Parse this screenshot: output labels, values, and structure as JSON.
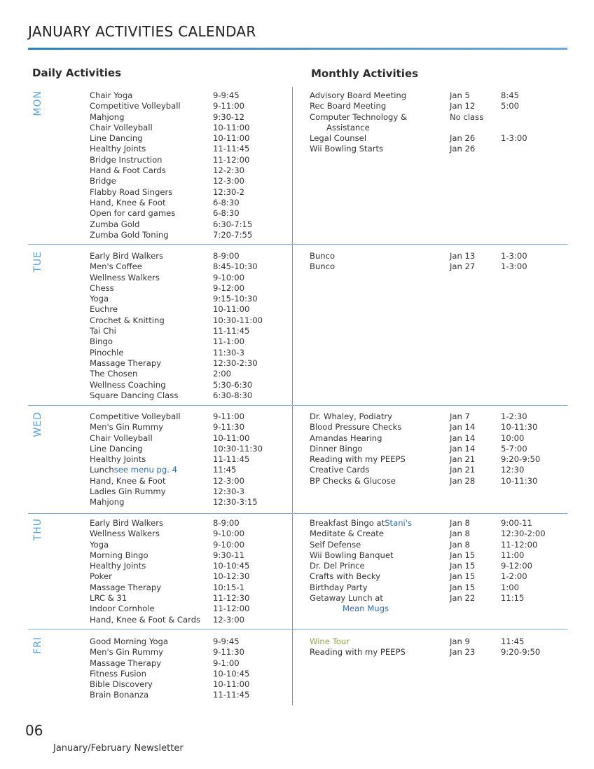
{
  "title": "JANUARY ACTIVITIES CALENDAR",
  "daily_heading": "Daily Activities",
  "monthly_heading": "Monthly Activities",
  "page_number": "06",
  "footer": "January/February Newsletter",
  "colors": {
    "accent": "#2f7fbf",
    "day_label": "#5aa3dc",
    "link": "#2d6fb0",
    "wine_tour": "#8aa84a"
  },
  "days": [
    {
      "label": "MON",
      "daily": [
        [
          "Chair Yoga",
          "9-9:45"
        ],
        [
          "Competitive Volleyball",
          "9-11:00"
        ],
        [
          "Mahjong",
          "9:30-12"
        ],
        [
          "Chair Volleyball",
          "10-11:00"
        ],
        [
          "Line Dancing",
          "10-11:00"
        ],
        [
          "Healthy Joints",
          "11-11:45"
        ],
        [
          "Bridge Instruction",
          "11-12:00"
        ],
        [
          "Hand & Foot Cards",
          "12-2:30"
        ],
        [
          "Bridge",
          "12-3:00"
        ],
        [
          "Flabby Road Singers",
          "12:30-2"
        ],
        [
          "Hand, Knee & Foot",
          "6-8:30"
        ],
        [
          "Open for card games",
          "6-8:30"
        ],
        [
          "Zumba Gold",
          "6:30-7:15"
        ],
        [
          "Zumba Gold Toning",
          "7:20-7:55"
        ]
      ],
      "monthly": [
        [
          "Advisory Board Meeting",
          "",
          "Jan 5",
          "8:45"
        ],
        [
          "Rec Board Meeting",
          "",
          "Jan 12",
          "5:00"
        ],
        [
          "Computer Technology &",
          "",
          "No class",
          ""
        ],
        [
          "    Assistance",
          "",
          "",
          ""
        ],
        [
          "Legal Counsel",
          "",
          "Jan 26",
          "1-3:00"
        ],
        [
          "Wii Bowling Starts",
          "",
          "Jan 26",
          ""
        ]
      ]
    },
    {
      "label": "TUE",
      "daily": [
        [
          "Early Bird Walkers",
          "8-9:00"
        ],
        [
          "Men's Coffee",
          "8:45-10:30"
        ],
        [
          "Wellness Walkers",
          "9-10:00"
        ],
        [
          "Chess",
          "9-12:00"
        ],
        [
          "Yoga",
          "9:15-10:30"
        ],
        [
          "Euchre",
          "10-11:00"
        ],
        [
          "Crochet & Knitting",
          "10:30-11:00"
        ],
        [
          "Tai Chi",
          "11-11:45"
        ],
        [
          "Bingo",
          "11-1:00"
        ],
        [
          "Pinochle",
          "11:30-3"
        ],
        [
          "Massage Therapy",
          "12:30-2:30"
        ],
        [
          "The Chosen",
          "2:00"
        ],
        [
          "Wellness Coaching",
          "5:30-6:30"
        ],
        [
          "Square Dancing Class",
          "6:30-8:30"
        ]
      ],
      "monthly": [
        [
          "Bunco",
          "",
          "Jan 13",
          "1-3:00"
        ],
        [
          "Bunco",
          "",
          "Jan 27",
          "1-3:00"
        ]
      ]
    },
    {
      "label": "WED",
      "daily": [
        [
          "Competitive Volleyball",
          "9-11:00"
        ],
        [
          "Men's Gin Rummy",
          "9-11:30"
        ],
        [
          "Chair Volleyball",
          "10-11:00"
        ],
        [
          "Line Dancing",
          "10:30-11:30"
        ],
        [
          "Healthy Joints",
          "11-11:45"
        ],
        [
          "Lunch ",
          "11:45",
          "see menu pg. 4"
        ],
        [
          "Hand, Knee & Foot",
          "12-3:00"
        ],
        [
          "Ladies Gin Rummy",
          "12:30-3"
        ],
        [
          "Mahjong",
          "12:30-3:15"
        ]
      ],
      "monthly": [
        [
          "Dr. Whaley, Podiatry",
          "",
          "Jan 7",
          "1-2:30"
        ],
        [
          "Blood Pressure Checks",
          "",
          "Jan 14",
          "10-11:30"
        ],
        [
          "Amandas Hearing",
          "",
          "Jan 14",
          "10:00"
        ],
        [
          "Dinner Bingo",
          "",
          "Jan 14",
          "5-7:00"
        ],
        [
          "Reading with my PEEPS",
          "",
          "Jan 21",
          "9:20-9:50"
        ],
        [
          "Creative Cards",
          "",
          "Jan 21",
          "12:30"
        ],
        [
          "BP Checks & Glucose",
          "",
          "Jan 28",
          "10-11:30"
        ]
      ]
    },
    {
      "label": "THU",
      "daily": [
        [
          "Early Bird Walkers",
          "8-9:00"
        ],
        [
          "Wellness Walkers",
          "9-10:00"
        ],
        [
          "Yoga",
          "9-10:00"
        ],
        [
          "Morning Bingo",
          "9:30-11"
        ],
        [
          "Healthy Joints",
          "10-10:45"
        ],
        [
          "Poker",
          "10-12:30"
        ],
        [
          "Massage Therapy",
          "10:15-1"
        ],
        [
          "LRC & 31",
          "11-12:30"
        ],
        [
          "Indoor Cornhole",
          "11-12:00"
        ],
        [
          "Hand, Knee & Foot & Cards",
          "12-3:00"
        ]
      ],
      "monthly": [
        [
          "Breakfast Bingo at ",
          "Stani's",
          "Jan 8",
          "9:00-11"
        ],
        [
          "Meditate & Create",
          "",
          "Jan 8",
          "12:30-2:00"
        ],
        [
          "Self Defense",
          "",
          "Jan 8",
          "11-12:00"
        ],
        [
          "Wii Bowling Banquet",
          "",
          "Jan 15",
          "11:00"
        ],
        [
          "Dr. Del Prince",
          "",
          "Jan 15",
          "9-12:00"
        ],
        [
          "Crafts with Becky",
          "",
          "Jan 15",
          "1-2:00"
        ],
        [
          "Birthday Party",
          "",
          "Jan 15",
          "1:00"
        ],
        [
          "Getaway Lunch at",
          "",
          "Jan 22",
          "11:15"
        ],
        [
          "",
          "Mean Mugs",
          "",
          ""
        ]
      ]
    },
    {
      "label": "FRI",
      "daily": [
        [
          "Good Morning Yoga",
          "9-9:45"
        ],
        [
          "Men's Gin Rummy",
          "9-11:30"
        ],
        [
          "Massage Therapy",
          "9-1:00"
        ],
        [
          "Fitness Fusion",
          "10-10:45"
        ],
        [
          "Bible Discovery",
          "10-11:00"
        ],
        [
          "Brain Bonanza",
          "11-11:45"
        ]
      ],
      "monthly": [
        [
          "Wine Tour",
          "",
          "Jan 9",
          "11:45"
        ],
        [
          "Reading with my PEEPS",
          "",
          "Jan 23",
          "9:20-9:50"
        ]
      ]
    }
  ]
}
